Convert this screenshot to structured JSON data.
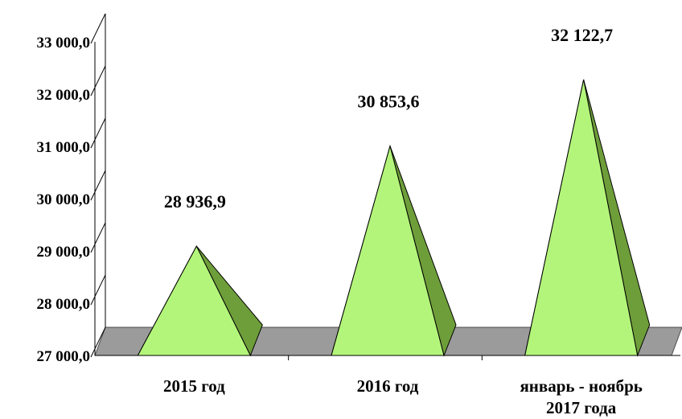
{
  "chart_data": {
    "type": "bar",
    "bar_shape": "pyramid-3d",
    "categories": [
      "2015 год",
      "2016 год",
      [
        "январь - ноябрь",
        "2017 года"
      ]
    ],
    "values": [
      28936.9,
      30853.6,
      32122.7
    ],
    "data_labels": [
      "28 936,9",
      "30 853,6",
      "32 122,7"
    ],
    "y_tick_labels": [
      "27 000,0",
      "28 000,0",
      "29 000,0",
      "30 000,0",
      "31 000,0",
      "32 000,0",
      "33 000,0"
    ],
    "y_ticks": [
      27000,
      28000,
      29000,
      30000,
      31000,
      32000,
      33000
    ],
    "ylim": [
      27000,
      33000
    ],
    "grid": false,
    "colors": {
      "pyramid_front": "#b3f57a",
      "pyramid_side": "#6e9e3a",
      "floor": "#9b9b9b",
      "wall": "#ffffff",
      "outline": "#000000"
    }
  }
}
